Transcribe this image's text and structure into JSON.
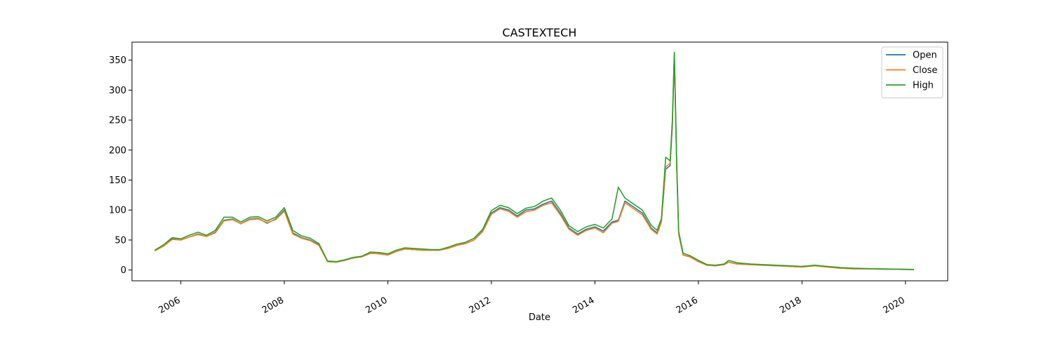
{
  "chart_data": {
    "type": "line",
    "title": "CASTEXTECH",
    "xlabel": "Date",
    "ylabel": "",
    "xlim": [
      "2005-01-21",
      "2020-10-25"
    ],
    "ylim": [
      -18,
      380
    ],
    "x_ticks": [
      "2006-01-01",
      "2008-01-01",
      "2010-01-01",
      "2012-01-01",
      "2014-01-01",
      "2016-01-01",
      "2018-01-01",
      "2020-01-01"
    ],
    "x_tick_labels": [
      "2006",
      "2008",
      "2010",
      "2012",
      "2014",
      "2016",
      "2018",
      "2020"
    ],
    "y_ticks": [
      0,
      50,
      100,
      150,
      200,
      250,
      300,
      350
    ],
    "y_tick_labels": [
      "0",
      "50",
      "100",
      "150",
      "200",
      "250",
      "300",
      "350"
    ],
    "grid": false,
    "legend_position": "top-right",
    "x": [
      "2005-07-01",
      "2005-09-01",
      "2005-11-01",
      "2006-01-01",
      "2006-03-01",
      "2006-05-01",
      "2006-07-01",
      "2006-09-01",
      "2006-11-01",
      "2007-01-01",
      "2007-03-01",
      "2007-05-01",
      "2007-07-01",
      "2007-09-01",
      "2007-11-01",
      "2008-01-01",
      "2008-03-01",
      "2008-05-01",
      "2008-07-01",
      "2008-09-01",
      "2008-11-01",
      "2009-01-01",
      "2009-03-01",
      "2009-05-01",
      "2009-07-01",
      "2009-09-01",
      "2009-11-01",
      "2010-01-01",
      "2010-03-01",
      "2010-05-01",
      "2010-07-01",
      "2010-09-01",
      "2010-11-01",
      "2011-01-01",
      "2011-03-01",
      "2011-05-01",
      "2011-07-01",
      "2011-09-01",
      "2011-11-01",
      "2012-01-01",
      "2012-03-01",
      "2012-05-01",
      "2012-07-01",
      "2012-09-01",
      "2012-11-01",
      "2013-01-01",
      "2013-03-01",
      "2013-05-01",
      "2013-07-01",
      "2013-09-01",
      "2013-11-01",
      "2014-01-01",
      "2014-03-01",
      "2014-05-01",
      "2014-06-15",
      "2014-08-01",
      "2014-10-01",
      "2014-12-01",
      "2015-02-01",
      "2015-03-15",
      "2015-04-15",
      "2015-05-15",
      "2015-06-15",
      "2015-07-01",
      "2015-07-15",
      "2015-08-01",
      "2015-08-15",
      "2015-09-15",
      "2015-11-01",
      "2016-01-01",
      "2016-03-01",
      "2016-05-01",
      "2016-07-01",
      "2016-08-01",
      "2016-10-01",
      "2017-01-01",
      "2017-04-01",
      "2017-07-01",
      "2017-10-01",
      "2018-01-01",
      "2018-04-01",
      "2018-07-01",
      "2018-10-01",
      "2019-01-01",
      "2019-04-01",
      "2019-07-01",
      "2019-10-01",
      "2020-01-01",
      "2020-03-01"
    ],
    "series": [
      {
        "name": "Open",
        "color": "#1f77b4",
        "values": [
          32,
          40,
          52,
          50,
          55,
          60,
          56,
          63,
          83,
          85,
          77,
          85,
          86,
          78,
          85,
          100,
          62,
          54,
          50,
          42,
          14,
          13,
          16,
          20,
          22,
          28,
          27,
          25,
          31,
          35,
          34,
          33,
          33,
          33,
          36,
          41,
          44,
          50,
          65,
          95,
          104,
          100,
          90,
          100,
          102,
          110,
          115,
          95,
          70,
          60,
          68,
          72,
          65,
          80,
          83,
          115,
          105,
          95,
          70,
          62,
          82,
          168,
          174,
          240,
          360,
          170,
          60,
          25,
          22,
          14,
          8,
          7,
          9,
          13,
          10,
          9,
          8,
          7,
          6,
          5,
          7,
          5,
          3,
          2,
          2,
          1.5,
          1.2,
          1,
          0.8
        ]
      },
      {
        "name": "Close",
        "color": "#ff7f0e",
        "values": [
          32,
          40,
          51,
          50,
          55,
          59,
          56,
          62,
          82,
          84,
          77,
          84,
          85,
          79,
          84,
          98,
          60,
          53,
          49,
          41,
          14,
          13,
          16,
          20,
          22,
          28,
          27,
          25,
          31,
          35,
          34,
          33,
          33,
          33,
          36,
          41,
          44,
          50,
          64,
          93,
          102,
          98,
          88,
          97,
          100,
          108,
          112,
          92,
          68,
          58,
          66,
          70,
          62,
          78,
          81,
          112,
          102,
          92,
          68,
          60,
          80,
          172,
          178,
          245,
          358,
          172,
          60,
          25,
          22,
          14,
          8,
          7,
          9,
          13,
          10,
          9,
          8,
          7,
          6,
          5,
          7,
          5,
          3,
          2,
          2,
          1.5,
          1.2,
          1,
          0.8
        ]
      },
      {
        "name": "High",
        "color": "#2ca02c",
        "values": [
          33,
          42,
          54,
          52,
          58,
          63,
          58,
          66,
          88,
          88,
          80,
          88,
          89,
          82,
          88,
          104,
          66,
          57,
          53,
          44,
          15,
          14,
          17,
          21,
          23,
          30,
          29,
          27,
          33,
          37,
          36,
          35,
          34,
          34,
          38,
          43,
          46,
          53,
          68,
          99,
          108,
          104,
          94,
          103,
          106,
          115,
          120,
          100,
          74,
          64,
          72,
          76,
          70,
          85,
          138,
          120,
          110,
          100,
          75,
          66,
          86,
          188,
          182,
          250,
          363,
          180,
          64,
          28,
          24,
          16,
          9,
          8,
          10,
          16,
          12,
          10,
          9,
          8,
          7,
          6,
          8,
          6,
          4,
          3,
          2.5,
          2,
          1.5,
          1.2,
          1
        ]
      }
    ]
  }
}
